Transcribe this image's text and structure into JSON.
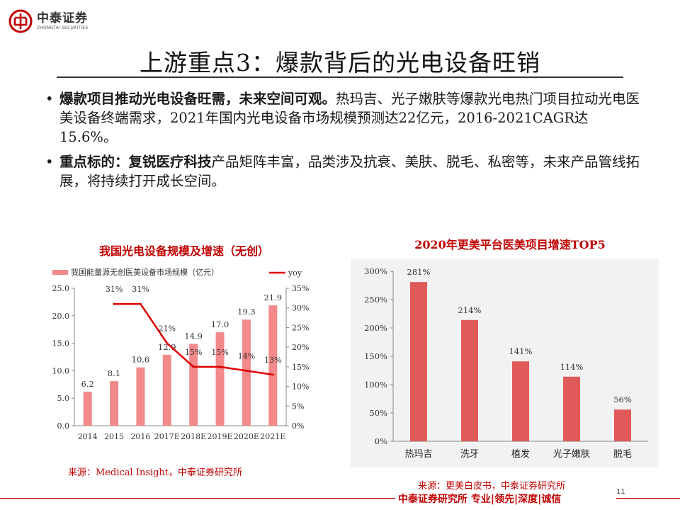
{
  "header": {
    "logo_cn": "中泰证券",
    "logo_en": "ZHONGTAI SECURITIES",
    "brand_color": "#c00000"
  },
  "page_title": "上游重点3：爆款背后的光电设备旺销",
  "bullets": [
    {
      "marker": "•",
      "bold": "爆款项目推动光电设备旺需，未来空间可观。",
      "text": "热玛吉、光子嫩肤等爆款光电热门项目拉动光电医美设备终端需求，2021年国内光电设备市场规模预测达22亿元，2016-2021CAGR达15.6%。"
    },
    {
      "marker": "•",
      "bold": "重点标的：复锐医疗科技",
      "text": "产品矩阵丰富，品类涉及抗衰、美肤、脱毛、私密等，未来产品管线拓展，将持续打开成长空间。"
    }
  ],
  "chart_data": [
    {
      "type": "bar",
      "title": "我国光电设备规模及增速（无创）",
      "categories": [
        "2014",
        "2015",
        "2016",
        "2017E",
        "2018E",
        "2019E",
        "2020E",
        "2021E"
      ],
      "series": [
        {
          "name": "我国能量源无创医美设备市场规模（亿元）",
          "type": "bar",
          "axis": "left",
          "values": [
            6.2,
            8.1,
            10.6,
            12.9,
            14.9,
            17.0,
            19.3,
            21.9
          ],
          "labels": [
            "6.2",
            "8.1",
            "10.6",
            "12.9",
            "14.9",
            "17.0",
            "19.3",
            "21.9"
          ],
          "color": "#f2898a"
        },
        {
          "name": "yoy",
          "type": "line",
          "axis": "right",
          "values": [
            null,
            31,
            31,
            21,
            15,
            15,
            14,
            13
          ],
          "labels": [
            "",
            "31%",
            "31%",
            "21%",
            "15%",
            "15%",
            "14%",
            "13%"
          ],
          "color": "#e00000"
        }
      ],
      "y_left": {
        "range": [
          0,
          25
        ],
        "ticks": [
          0,
          5,
          10,
          15,
          20,
          25
        ],
        "tick_labels": [
          "0.0",
          "5.0",
          "10.0",
          "15.0",
          "20.0",
          "25.0"
        ]
      },
      "y_right": {
        "range": [
          0,
          35
        ],
        "ticks": [
          0,
          5,
          10,
          15,
          20,
          25,
          30,
          35
        ],
        "tick_labels": [
          "0%",
          "5%",
          "10%",
          "15%",
          "20%",
          "25%",
          "30%",
          "35%"
        ]
      },
      "grid": false,
      "legend": "top",
      "source": "来源：Medical Insight，中泰证券研究所"
    },
    {
      "type": "bar",
      "title": "2020年更美平台医美项目增速TOP5",
      "categories": [
        "热玛吉",
        "洗牙",
        "植发",
        "光子嫩肤",
        "脱毛"
      ],
      "values": [
        281,
        214,
        141,
        114,
        56
      ],
      "labels": [
        "281%",
        "214%",
        "141%",
        "114%",
        "56%"
      ],
      "color": "#e05a5a",
      "ylim": [
        0,
        300
      ],
      "y_ticks": [
        0,
        50,
        100,
        150,
        200,
        250,
        300
      ],
      "y_tick_labels": [
        "0%",
        "50%",
        "100%",
        "150%",
        "200%",
        "250%",
        "300%"
      ],
      "grid": false,
      "background": "#f2f2f2",
      "source": "来源：更美白皮书，中泰证券研究所"
    }
  ],
  "footer": {
    "text": "中泰证券研究所  专业|领先|深度|诚信",
    "page_number": "11"
  }
}
